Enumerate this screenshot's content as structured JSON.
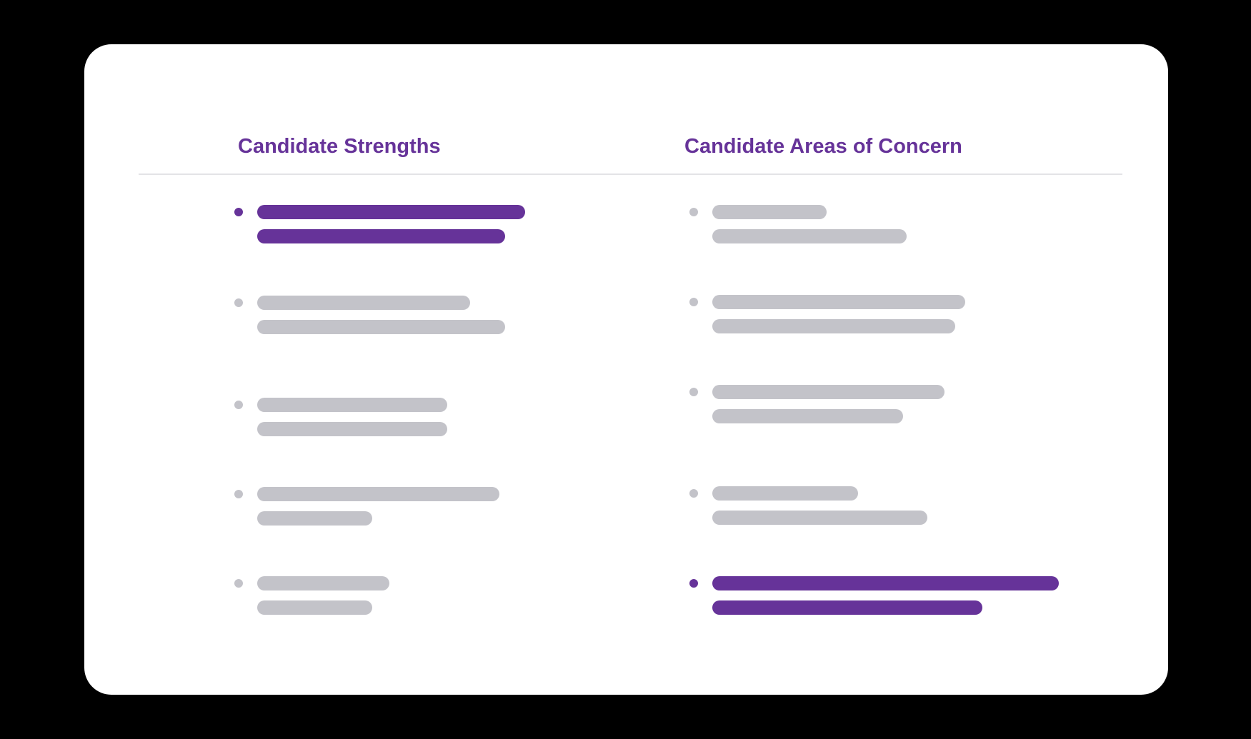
{
  "colors": {
    "accent": "#663399",
    "muted": "#c3c3c9",
    "divider": "#e3e3e6",
    "card": "#ffffff",
    "background": "#000000"
  },
  "columns": [
    {
      "title": "Candidate Strengths",
      "items": [
        {
          "highlighted": true,
          "line_fractions": [
            0.93,
            0.86
          ]
        },
        {
          "highlighted": false,
          "line_fractions": [
            0.74,
            0.86
          ]
        },
        {
          "highlighted": false,
          "line_fractions": [
            0.66,
            0.66
          ]
        },
        {
          "highlighted": false,
          "line_fractions": [
            0.84,
            0.4
          ]
        },
        {
          "highlighted": false,
          "line_fractions": [
            0.46,
            0.4
          ]
        }
      ]
    },
    {
      "title": "Candidate Areas of Concern",
      "items": [
        {
          "highlighted": false,
          "line_fractions": [
            0.33,
            0.56
          ]
        },
        {
          "highlighted": false,
          "line_fractions": [
            0.73,
            0.7
          ]
        },
        {
          "highlighted": false,
          "line_fractions": [
            0.67,
            0.55
          ]
        },
        {
          "highlighted": false,
          "line_fractions": [
            0.42,
            0.62
          ]
        },
        {
          "highlighted": true,
          "line_fractions": [
            1.0,
            0.78
          ]
        }
      ]
    }
  ]
}
